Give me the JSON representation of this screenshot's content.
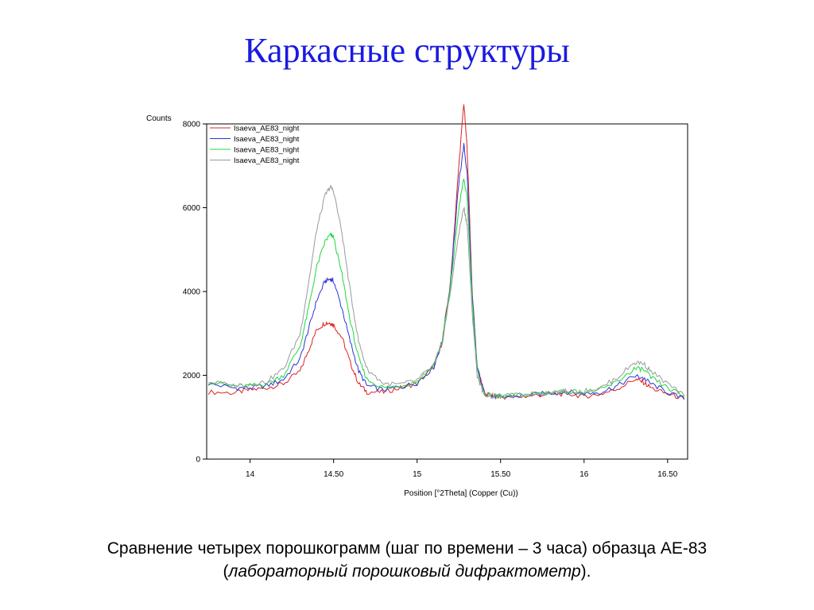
{
  "slide": {
    "title": "Каркасные структуры",
    "caption_line1": "Сравнение четырех порошкограмм (шаг по времени – 3 часа) образца АЕ-83",
    "caption_line2_open": "(",
    "caption_line2_italic": "лабораторный порошковый дифрактометр",
    "caption_line2_close": ")."
  },
  "chart_data": {
    "type": "line",
    "title": "",
    "xlabel": "Position [°2Theta] (Copper (Cu))",
    "ylabel": "Counts",
    "xlim": [
      13.74,
      16.62
    ],
    "ylim": [
      0,
      8000
    ],
    "x_ticks": [
      14,
      14.5,
      15,
      15.5,
      16,
      16.5
    ],
    "x_tick_labels": [
      "14",
      "14.50",
      "15",
      "15.50",
      "16",
      "16.50"
    ],
    "y_ticks": [
      0,
      2000,
      4000,
      6000,
      8000
    ],
    "y_tick_labels": [
      "0",
      "2000",
      "4000",
      "6000",
      "8000"
    ],
    "grid": false,
    "legend_position": "top-left",
    "series": [
      {
        "name": "Isaeva_AE83_night",
        "color": "#e02020",
        "x": [
          13.75,
          13.9,
          14.0,
          14.1,
          14.2,
          14.3,
          14.35,
          14.4,
          14.45,
          14.48,
          14.5,
          14.55,
          14.6,
          14.65,
          14.7,
          14.8,
          14.9,
          15.0,
          15.1,
          15.15,
          15.2,
          15.25,
          15.28,
          15.3,
          15.33,
          15.36,
          15.4,
          15.45,
          15.5,
          15.6,
          15.7,
          15.8,
          15.9,
          16.0,
          16.1,
          16.2,
          16.3,
          16.35,
          16.4,
          16.5,
          16.6
        ],
        "y": [
          1600,
          1580,
          1650,
          1700,
          1800,
          2100,
          2600,
          3100,
          3250,
          3250,
          3200,
          2900,
          2300,
          1800,
          1600,
          1600,
          1700,
          1800,
          2200,
          2800,
          4200,
          7000,
          8500,
          7400,
          4000,
          2200,
          1600,
          1500,
          1480,
          1480,
          1520,
          1550,
          1560,
          1500,
          1550,
          1680,
          1900,
          1850,
          1700,
          1550,
          1450
        ]
      },
      {
        "name": "Isaeva_AE83_night",
        "color": "#2a35d8",
        "x": [
          13.75,
          13.9,
          14.0,
          14.1,
          14.2,
          14.3,
          14.35,
          14.4,
          14.45,
          14.48,
          14.5,
          14.55,
          14.6,
          14.65,
          14.7,
          14.8,
          14.9,
          15.0,
          15.1,
          15.15,
          15.2,
          15.25,
          15.28,
          15.3,
          15.33,
          15.36,
          15.4,
          15.45,
          15.5,
          15.6,
          15.7,
          15.8,
          15.9,
          16.0,
          16.1,
          16.2,
          16.3,
          16.35,
          16.4,
          16.5,
          16.6
        ],
        "y": [
          1800,
          1700,
          1700,
          1750,
          1900,
          2400,
          3100,
          3800,
          4250,
          4300,
          4250,
          3600,
          2800,
          2100,
          1750,
          1650,
          1720,
          1820,
          2200,
          2800,
          4200,
          6600,
          7500,
          6800,
          3900,
          2200,
          1600,
          1500,
          1480,
          1500,
          1540,
          1580,
          1600,
          1560,
          1600,
          1750,
          1980,
          1950,
          1800,
          1600,
          1420
        ]
      },
      {
        "name": "Isaeva_AE83_night",
        "color": "#1fd83a",
        "x": [
          13.75,
          13.9,
          14.0,
          14.1,
          14.2,
          14.3,
          14.35,
          14.4,
          14.45,
          14.48,
          14.5,
          14.55,
          14.6,
          14.65,
          14.7,
          14.8,
          14.9,
          15.0,
          15.1,
          15.15,
          15.2,
          15.25,
          15.28,
          15.3,
          15.33,
          15.36,
          15.4,
          15.45,
          15.5,
          15.6,
          15.7,
          15.8,
          15.9,
          16.0,
          16.1,
          16.2,
          16.3,
          16.35,
          16.4,
          16.5,
          16.6
        ],
        "y": [
          1850,
          1750,
          1750,
          1800,
          2000,
          2700,
          3600,
          4600,
          5200,
          5350,
          5300,
          4400,
          3300,
          2400,
          1900,
          1700,
          1750,
          1850,
          2250,
          2800,
          4100,
          6000,
          6700,
          6200,
          3800,
          2100,
          1550,
          1500,
          1500,
          1520,
          1560,
          1600,
          1620,
          1600,
          1650,
          1850,
          2150,
          2150,
          1950,
          1700,
          1500
        ]
      },
      {
        "name": "Isaeva_AE83_night",
        "color": "#9a9a9a",
        "x": [
          13.75,
          13.9,
          14.0,
          14.1,
          14.2,
          14.3,
          14.35,
          14.4,
          14.45,
          14.48,
          14.5,
          14.55,
          14.6,
          14.65,
          14.7,
          14.8,
          14.9,
          15.0,
          15.1,
          15.15,
          15.2,
          15.25,
          15.28,
          15.3,
          15.33,
          15.36,
          15.4,
          15.45,
          15.5,
          15.6,
          15.7,
          15.8,
          15.9,
          16.0,
          16.1,
          16.2,
          16.3,
          16.35,
          16.4,
          16.5,
          16.6
        ],
        "y": [
          1850,
          1750,
          1780,
          1850,
          2150,
          3000,
          4200,
          5500,
          6300,
          6500,
          6400,
          5400,
          4000,
          2800,
          2150,
          1800,
          1780,
          1880,
          2250,
          2750,
          4000,
          5400,
          6000,
          5600,
          3500,
          2000,
          1550,
          1500,
          1500,
          1520,
          1560,
          1600,
          1620,
          1620,
          1700,
          1950,
          2300,
          2300,
          2100,
          1800,
          1500
        ]
      }
    ]
  }
}
